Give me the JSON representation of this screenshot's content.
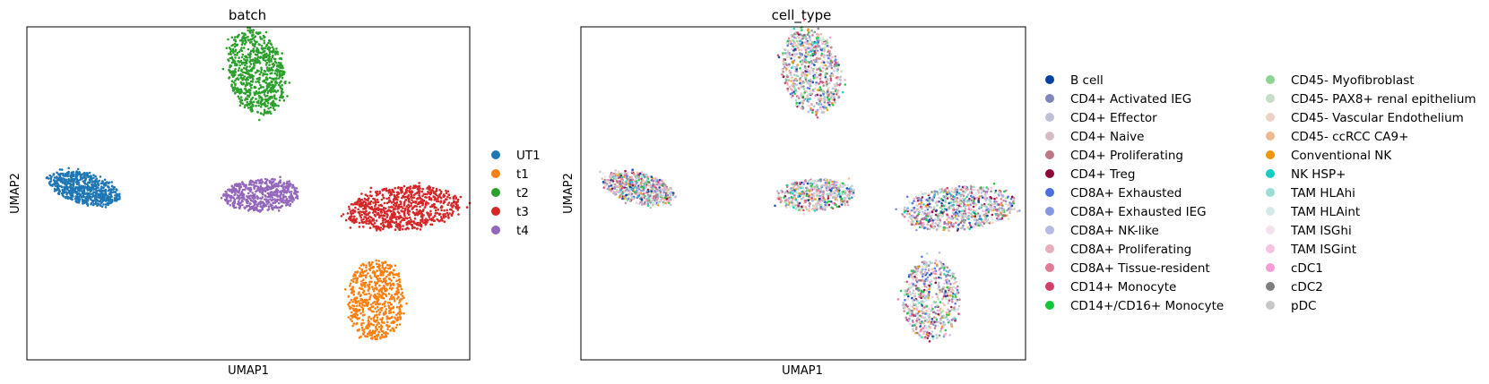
{
  "chart_data": [
    {
      "type": "scatter",
      "title": "batch",
      "xlabel": "UMAP1",
      "ylabel": "UMAP2",
      "xlim": [
        0,
        100
      ],
      "ylim": [
        0,
        100
      ],
      "grid": false,
      "legend_placement": "right",
      "series": [
        {
          "name": "UT1",
          "color": "#1f77b4",
          "cluster": {
            "x": 13,
            "y": 51.5,
            "rx": 8.5,
            "ry": 4.5,
            "angle": -22,
            "n": 650
          }
        },
        {
          "name": "t1",
          "color": "#ff7f0e",
          "cluster": {
            "x": 78.8,
            "y": 18,
            "rx": 6.4,
            "ry": 12.2,
            "angle": 0,
            "n": 600
          }
        },
        {
          "name": "t2",
          "color": "#2ca02c",
          "cluster": {
            "x": 51.8,
            "y": 86.5,
            "rx": 6.5,
            "ry": 12.8,
            "angle": 8,
            "n": 750
          }
        },
        {
          "name": "t3",
          "color": "#d62728",
          "cluster": {
            "x": 85,
            "y": 45.5,
            "rx": 12.9,
            "ry": 6.6,
            "angle": 8,
            "n": 800
          }
        },
        {
          "name": "t4",
          "color": "#9467bd",
          "cluster": {
            "x": 52.8,
            "y": 49.5,
            "rx": 8.6,
            "ry": 4.8,
            "angle": 5,
            "n": 550
          }
        }
      ]
    },
    {
      "type": "scatter",
      "title": "cell_type",
      "xlabel": "UMAP1",
      "ylabel": "UMAP2",
      "xlim": [
        0,
        100
      ],
      "ylim": [
        0,
        100
      ],
      "grid": false,
      "legend_placement": "right",
      "clusters": [
        {
          "x": 13,
          "y": 51.5,
          "rx": 8.5,
          "ry": 4.5,
          "angle": -22,
          "n": 650
        },
        {
          "x": 78.8,
          "y": 18,
          "rx": 6.4,
          "ry": 12.2,
          "angle": 0,
          "n": 600
        },
        {
          "x": 51.8,
          "y": 86.5,
          "rx": 6.5,
          "ry": 12.8,
          "angle": 8,
          "n": 750
        },
        {
          "x": 85,
          "y": 45.5,
          "rx": 12.9,
          "ry": 6.6,
          "angle": 8,
          "n": 800
        },
        {
          "x": 52.8,
          "y": 49.5,
          "rx": 8.6,
          "ry": 4.8,
          "angle": 5,
          "n": 550
        }
      ],
      "series": [
        {
          "name": "B cell",
          "color": "#023fa5"
        },
        {
          "name": "CD4+ Activated IEG",
          "color": "#7d87b9"
        },
        {
          "name": "CD4+ Effector",
          "color": "#bec1d4"
        },
        {
          "name": "CD4+ Naive",
          "color": "#d6bcc0"
        },
        {
          "name": "CD4+ Proliferating",
          "color": "#bb7784"
        },
        {
          "name": "CD4+ Treg",
          "color": "#8e063b"
        },
        {
          "name": "CD8A+ Exhausted",
          "color": "#4a6fe3"
        },
        {
          "name": "CD8A+ Exhausted IEG",
          "color": "#8595e1"
        },
        {
          "name": "CD8A+ NK-like",
          "color": "#b5bbe3"
        },
        {
          "name": "CD8A+ Proliferating",
          "color": "#e6afb9"
        },
        {
          "name": "CD8A+ Tissue-resident",
          "color": "#e07b91"
        },
        {
          "name": "CD14+ Monocyte",
          "color": "#d33f6a"
        },
        {
          "name": "CD14+/CD16+ Monocyte",
          "color": "#11c638"
        },
        {
          "name": "CD45- Myofibroblast",
          "color": "#8dd593"
        },
        {
          "name": "CD45- PAX8+ renal epithelium",
          "color": "#c6dec7"
        },
        {
          "name": "CD45- Vascular Endothelium",
          "color": "#ead3c6"
        },
        {
          "name": "CD45- ccRCC CA9+",
          "color": "#f0b98d"
        },
        {
          "name": "Conventional NK",
          "color": "#ef9708"
        },
        {
          "name": "NK HSP+",
          "color": "#0fcfc0"
        },
        {
          "name": "TAM HLAhi",
          "color": "#9cded6"
        },
        {
          "name": "TAM HLAint",
          "color": "#d5eae7"
        },
        {
          "name": "TAM ISGhi",
          "color": "#f3e1eb"
        },
        {
          "name": "TAM ISGint",
          "color": "#f6c4e1"
        },
        {
          "name": "cDC1",
          "color": "#f79cd4"
        },
        {
          "name": "cDC2",
          "color": "#7f7f7f"
        },
        {
          "name": "pDC",
          "color": "#c7c7c7"
        }
      ]
    }
  ]
}
